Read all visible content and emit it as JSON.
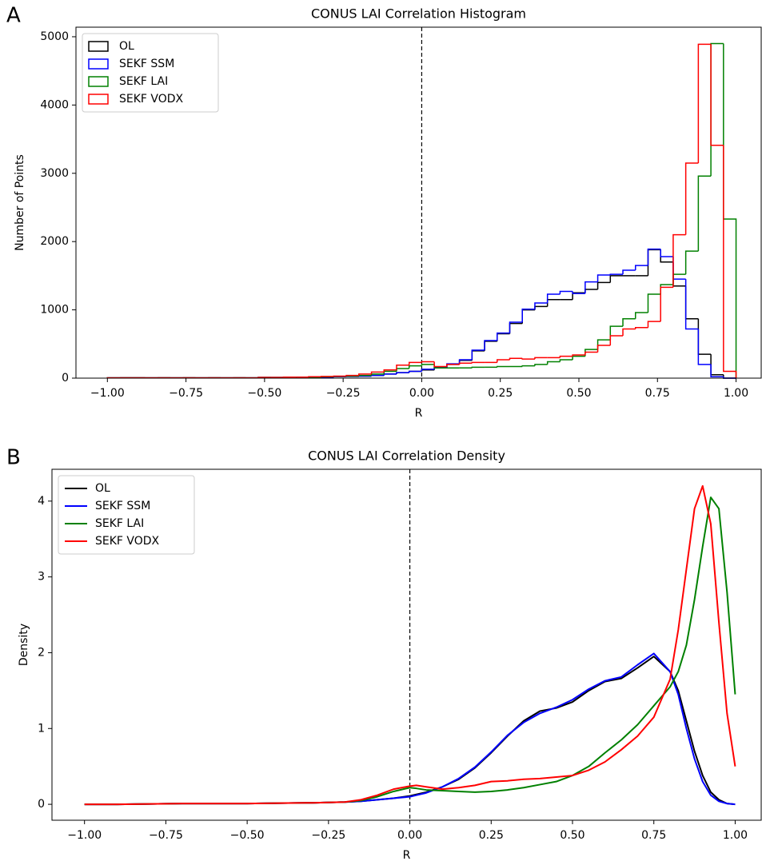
{
  "chart_data": [
    {
      "type": "histogram",
      "panel_label": "A",
      "title": "CONUS LAI Correlation Histogram",
      "x_label": "R",
      "y_label": "Number of Points",
      "bins": [
        -1,
        -0.96,
        -0.92,
        -0.88,
        -0.84,
        -0.8,
        -0.76,
        -0.72,
        -0.68,
        -0.64,
        -0.6,
        -0.56,
        -0.52,
        -0.48,
        -0.44,
        -0.4,
        -0.36,
        -0.32,
        -0.28,
        -0.24,
        -0.2,
        -0.16,
        -0.12,
        -0.08,
        -0.04,
        0,
        0.04,
        0.08,
        0.12,
        0.16,
        0.2,
        0.24,
        0.28,
        0.32,
        0.36,
        0.4,
        0.44,
        0.48,
        0.52,
        0.56,
        0.6,
        0.64,
        0.68,
        0.72,
        0.76,
        0.8,
        0.84,
        0.88,
        0.92,
        0.96,
        1
      ],
      "series": [
        {
          "name": "OL",
          "color": "#000000",
          "values": [
            5,
            5,
            5,
            5,
            5,
            5,
            5,
            5,
            5,
            5,
            5,
            5,
            10,
            10,
            10,
            10,
            15,
            15,
            20,
            25,
            30,
            40,
            60,
            80,
            100,
            120,
            150,
            200,
            260,
            400,
            540,
            650,
            800,
            1000,
            1050,
            1150,
            1150,
            1250,
            1300,
            1400,
            1500,
            1500,
            1500,
            1880,
            1700,
            1350,
            870,
            350,
            50,
            0
          ]
        },
        {
          "name": "SEKF SSM",
          "color": "#0000ff",
          "values": [
            5,
            5,
            5,
            5,
            5,
            5,
            5,
            5,
            5,
            5,
            5,
            5,
            10,
            10,
            10,
            10,
            15,
            15,
            20,
            25,
            30,
            40,
            60,
            80,
            100,
            130,
            160,
            210,
            270,
            410,
            550,
            660,
            820,
            1010,
            1100,
            1230,
            1270,
            1240,
            1410,
            1510,
            1520,
            1580,
            1650,
            1890,
            1780,
            1450,
            720,
            200,
            20,
            0
          ]
        },
        {
          "name": "SEKF LAI",
          "color": "#008000",
          "values": [
            5,
            5,
            5,
            5,
            5,
            5,
            5,
            5,
            5,
            5,
            5,
            5,
            10,
            10,
            10,
            10,
            15,
            20,
            25,
            30,
            40,
            60,
            100,
            140,
            180,
            200,
            150,
            150,
            150,
            160,
            160,
            170,
            170,
            180,
            200,
            240,
            270,
            320,
            420,
            560,
            760,
            870,
            960,
            1230,
            1370,
            1520,
            1860,
            2960,
            4900,
            2330
          ]
        },
        {
          "name": "SEKF VODX",
          "color": "#ff0000",
          "values": [
            5,
            5,
            5,
            5,
            5,
            5,
            5,
            5,
            5,
            5,
            5,
            5,
            10,
            10,
            15,
            15,
            20,
            25,
            30,
            40,
            60,
            90,
            120,
            190,
            230,
            240,
            170,
            200,
            220,
            230,
            230,
            270,
            290,
            280,
            300,
            300,
            320,
            340,
            380,
            480,
            620,
            720,
            740,
            830,
            1330,
            2100,
            3150,
            4890,
            3410,
            100
          ]
        }
      ],
      "xlim": [
        -1.1,
        1.08
      ],
      "ylim": [
        0,
        5140
      ],
      "xticks": [
        {
          "value": -1,
          "label": "−1.00"
        },
        {
          "value": -0.75,
          "label": "−0.75"
        },
        {
          "value": -0.5,
          "label": "−0.50"
        },
        {
          "value": -0.25,
          "label": "−0.25"
        },
        {
          "value": 0,
          "label": "0.00"
        },
        {
          "value": 0.25,
          "label": "0.25"
        },
        {
          "value": 0.5,
          "label": "0.50"
        },
        {
          "value": 0.75,
          "label": "0.75"
        },
        {
          "value": 1,
          "label": "1.00"
        }
      ],
      "yticks": [
        0,
        1000,
        2000,
        3000,
        4000,
        5000
      ],
      "reference_line": 0,
      "legend": "upper left"
    },
    {
      "type": "line",
      "panel_label": "B",
      "title": "CONUS LAI Correlation Density",
      "x_label": "R",
      "y_label": "Density",
      "x": [
        -1,
        -0.9,
        -0.8,
        -0.7,
        -0.6,
        -0.5,
        -0.4,
        -0.3,
        -0.2,
        -0.15,
        -0.1,
        -0.05,
        0,
        0.02,
        0.05,
        0.1,
        0.15,
        0.2,
        0.25,
        0.3,
        0.35,
        0.4,
        0.45,
        0.5,
        0.55,
        0.6,
        0.65,
        0.7,
        0.75,
        0.8,
        0.825,
        0.85,
        0.875,
        0.9,
        0.925,
        0.95,
        0.975,
        1
      ],
      "series": [
        {
          "name": "OL",
          "color": "#000000",
          "values": [
            0,
            0,
            0.005,
            0.01,
            0.01,
            0.01,
            0.015,
            0.02,
            0.03,
            0.04,
            0.06,
            0.08,
            0.11,
            0.13,
            0.16,
            0.23,
            0.33,
            0.48,
            0.68,
            0.9,
            1.1,
            1.23,
            1.27,
            1.35,
            1.5,
            1.62,
            1.66,
            1.8,
            1.95,
            1.75,
            1.5,
            1.1,
            0.7,
            0.38,
            0.16,
            0.06,
            0.01,
            0
          ]
        },
        {
          "name": "SEKF SSM",
          "color": "#0000ff",
          "values": [
            0,
            0,
            0.005,
            0.01,
            0.01,
            0.01,
            0.015,
            0.02,
            0.03,
            0.04,
            0.06,
            0.08,
            0.1,
            0.12,
            0.15,
            0.23,
            0.34,
            0.49,
            0.69,
            0.91,
            1.08,
            1.2,
            1.28,
            1.38,
            1.52,
            1.63,
            1.68,
            1.84,
            1.99,
            1.75,
            1.45,
            1.0,
            0.6,
            0.3,
            0.12,
            0.04,
            0.01,
            0
          ]
        },
        {
          "name": "SEKF LAI",
          "color": "#008000",
          "values": [
            0,
            0,
            0.005,
            0.01,
            0.01,
            0.01,
            0.015,
            0.02,
            0.03,
            0.05,
            0.1,
            0.17,
            0.22,
            0.21,
            0.19,
            0.18,
            0.17,
            0.16,
            0.17,
            0.19,
            0.22,
            0.26,
            0.3,
            0.38,
            0.5,
            0.68,
            0.85,
            1.05,
            1.3,
            1.55,
            1.75,
            2.1,
            2.7,
            3.4,
            4.05,
            3.9,
            2.8,
            1.45
          ]
        },
        {
          "name": "SEKF VODX",
          "color": "#ff0000",
          "values": [
            0,
            0,
            0.005,
            0.01,
            0.01,
            0.01,
            0.015,
            0.02,
            0.03,
            0.06,
            0.12,
            0.2,
            0.24,
            0.25,
            0.23,
            0.2,
            0.22,
            0.25,
            0.3,
            0.31,
            0.33,
            0.34,
            0.36,
            0.38,
            0.45,
            0.56,
            0.72,
            0.9,
            1.15,
            1.65,
            2.3,
            3.1,
            3.9,
            4.2,
            3.7,
            2.4,
            1.2,
            0.5
          ]
        }
      ],
      "xlim": [
        -1.1,
        1.08
      ],
      "ylim": [
        -0.21,
        4.42
      ],
      "xticks": [
        {
          "value": -1,
          "label": "−1.00"
        },
        {
          "value": -0.75,
          "label": "−0.75"
        },
        {
          "value": -0.5,
          "label": "−0.50"
        },
        {
          "value": -0.25,
          "label": "−0.25"
        },
        {
          "value": 0,
          "label": "0.00"
        },
        {
          "value": 0.25,
          "label": "0.25"
        },
        {
          "value": 0.5,
          "label": "0.50"
        },
        {
          "value": 0.75,
          "label": "0.75"
        },
        {
          "value": 1,
          "label": "1.00"
        }
      ],
      "yticks": [
        0,
        1,
        2,
        3,
        4
      ],
      "reference_line": 0,
      "legend": "upper left"
    }
  ]
}
